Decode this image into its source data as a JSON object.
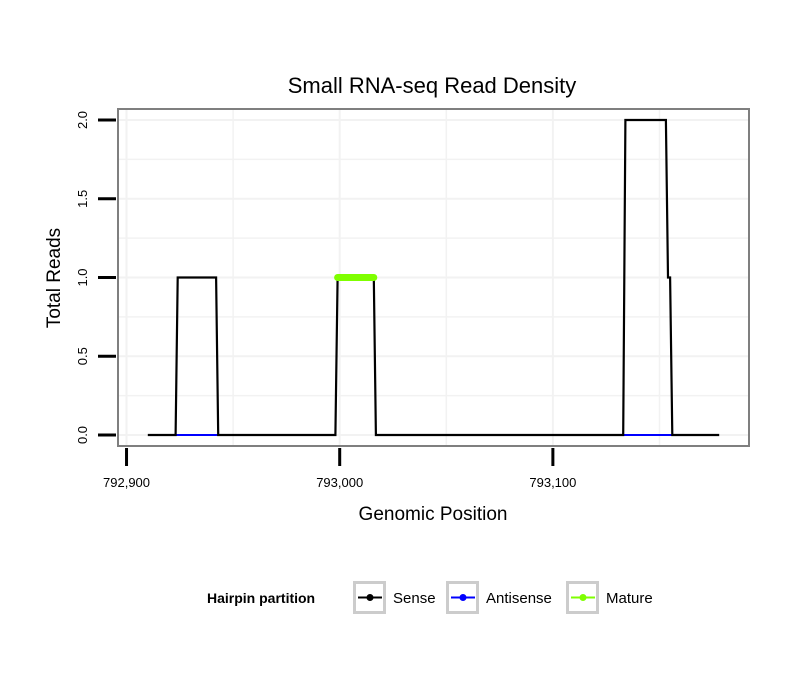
{
  "chart_data": {
    "type": "line",
    "title": "Small RNA-seq Read Density",
    "xlabel": "Genomic Position",
    "ylabel": "Total Reads",
    "xlim": [
      792896,
      793192
    ],
    "ylim": [
      -0.07,
      2.07
    ],
    "x_ticks": [
      792900,
      793000,
      793100
    ],
    "x_tick_labels": [
      "792,900",
      "793,000",
      "793,100"
    ],
    "y_ticks": [
      0,
      0.5,
      1,
      1.5,
      2
    ],
    "y_tick_labels": [
      "0.0",
      "0.5",
      "1.0",
      "1.5",
      "2.0"
    ],
    "grid": true,
    "legend_position": "bottom",
    "legend_title": "Hairpin partition",
    "series": [
      {
        "name": "Sense",
        "color": "#000000",
        "x": [
          792910,
          792923,
          792924,
          792942,
          792943,
          792998,
          792999,
          793016,
          793017,
          793133,
          793134,
          793153,
          793154,
          793155,
          793156,
          793178
        ],
        "y": [
          0,
          0,
          1,
          1,
          0,
          0,
          1,
          1,
          0,
          0,
          2,
          2,
          1,
          1,
          0,
          0
        ]
      },
      {
        "name": "Antisense",
        "color": "#0000ff",
        "x": [
          792923,
          792943,
          792998,
          793017,
          793133,
          793156
        ],
        "y": [
          0,
          0,
          null,
          0,
          0,
          null
        ]
      },
      {
        "name": "Mature",
        "color": "#7fff00",
        "x": [
          792999,
          793016
        ],
        "y": [
          1,
          1
        ]
      }
    ]
  }
}
